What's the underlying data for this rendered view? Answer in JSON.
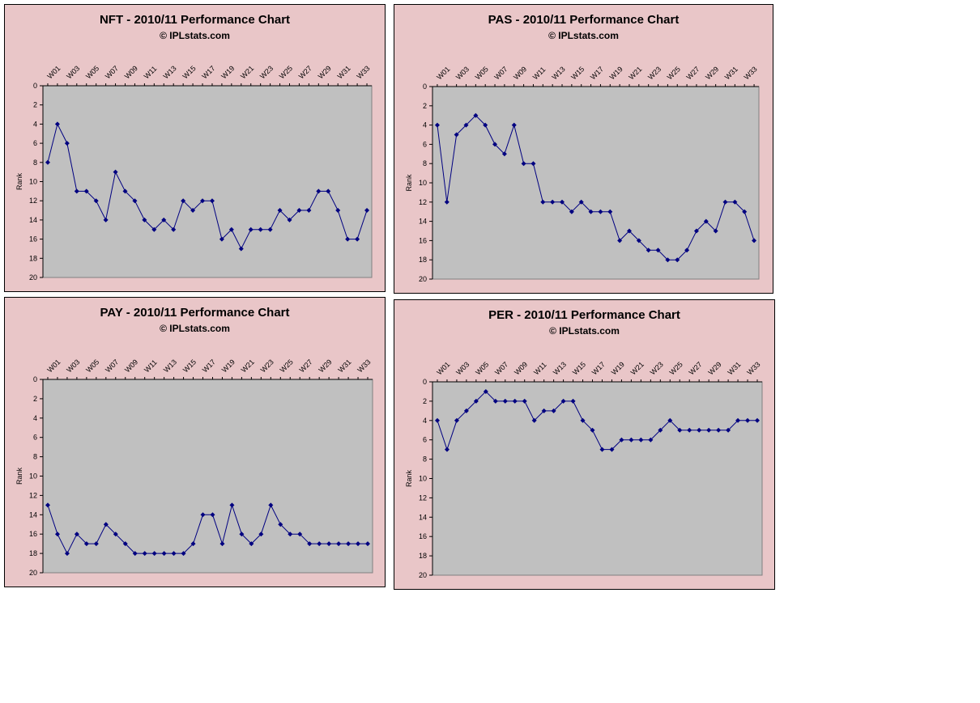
{
  "chart_data": [
    {
      "type": "line",
      "title": "NFT - 2010/11 Performance Chart",
      "subtitle": "© IPLstats.com",
      "ylabel": "Rank",
      "categories": [
        "W01",
        null,
        "W03",
        null,
        "W05",
        null,
        "W07",
        null,
        "W09",
        null,
        "W11",
        null,
        "W13",
        null,
        "W15",
        null,
        "W17",
        null,
        "W19",
        null,
        "W21",
        null,
        "W23",
        null,
        "W25",
        null,
        "W27",
        null,
        "W29",
        null,
        "W31",
        null,
        "W33",
        null
      ],
      "series": [
        {
          "color": "#000080",
          "values": [
            8,
            4,
            6,
            11,
            11,
            12,
            14,
            9,
            11,
            12,
            14,
            15,
            14,
            15,
            12,
            13,
            12,
            12,
            16,
            15,
            17,
            15,
            15,
            15,
            13,
            14,
            13,
            13,
            11,
            11,
            13,
            16,
            16,
            13
          ]
        }
      ],
      "ylim": [
        0,
        20
      ],
      "yticks": [
        0,
        2,
        4,
        6,
        8,
        10,
        12,
        14,
        16,
        18,
        20
      ],
      "y_inverted": true,
      "grid": false
    },
    {
      "type": "line",
      "title": "PAS - 2010/11 Performance Chart",
      "subtitle": "© IPLstats.com",
      "ylabel": "Rank",
      "categories": [
        "W01",
        null,
        "W03",
        null,
        "W05",
        null,
        "W07",
        null,
        "W09",
        null,
        "W11",
        null,
        "W13",
        null,
        "W15",
        null,
        "W17",
        null,
        "W19",
        null,
        "W21",
        null,
        "W23",
        null,
        "W25",
        null,
        "W27",
        null,
        "W29",
        null,
        "W31",
        null,
        "W33",
        null
      ],
      "series": [
        {
          "color": "#000080",
          "values": [
            4,
            12,
            5,
            4,
            3,
            4,
            6,
            7,
            4,
            8,
            8,
            12,
            12,
            12,
            13,
            12,
            13,
            13,
            13,
            16,
            15,
            16,
            17,
            17,
            18,
            18,
            17,
            15,
            14,
            15,
            12,
            12,
            13,
            16
          ]
        }
      ],
      "ylim": [
        0,
        20
      ],
      "yticks": [
        0,
        2,
        4,
        6,
        8,
        10,
        12,
        14,
        16,
        18,
        20
      ],
      "y_inverted": true,
      "grid": false
    },
    {
      "type": "line",
      "title": "PAY - 2010/11 Performance Chart",
      "subtitle": "© IPLstats.com",
      "ylabel": "Rank",
      "categories": [
        "W01",
        null,
        "W03",
        null,
        "W05",
        null,
        "W07",
        null,
        "W09",
        null,
        "W11",
        null,
        "W13",
        null,
        "W15",
        null,
        "W17",
        null,
        "W19",
        null,
        "W21",
        null,
        "W23",
        null,
        "W25",
        null,
        "W27",
        null,
        "W29",
        null,
        "W31",
        null,
        "W33",
        null
      ],
      "series": [
        {
          "color": "#000080",
          "values": [
            13,
            16,
            18,
            16,
            17,
            17,
            15,
            16,
            17,
            18,
            18,
            18,
            18,
            18,
            18,
            17,
            14,
            14,
            17,
            13,
            16,
            17,
            16,
            13,
            15,
            16,
            16,
            17,
            17,
            17,
            17,
            17,
            17,
            17
          ]
        }
      ],
      "ylim": [
        0,
        20
      ],
      "yticks": [
        0,
        2,
        4,
        6,
        8,
        10,
        12,
        14,
        16,
        18,
        20
      ],
      "y_inverted": true,
      "grid": false
    },
    {
      "type": "line",
      "title": "PER - 2010/11 Performance Chart",
      "subtitle": "© IPLstats.com",
      "ylabel": "Rank",
      "categories": [
        "W01",
        null,
        "W03",
        null,
        "W05",
        null,
        "W07",
        null,
        "W09",
        null,
        "W11",
        null,
        "W13",
        null,
        "W15",
        null,
        "W17",
        null,
        "W19",
        null,
        "W21",
        null,
        "W23",
        null,
        "W25",
        null,
        "W27",
        null,
        "W29",
        null,
        "W31",
        null,
        "W33",
        null
      ],
      "series": [
        {
          "color": "#000080",
          "values": [
            4,
            7,
            4,
            3,
            2,
            1,
            2,
            2,
            2,
            2,
            4,
            3,
            3,
            2,
            2,
            4,
            5,
            7,
            7,
            6,
            6,
            6,
            6,
            5,
            4,
            5,
            5,
            5,
            5,
            5,
            5,
            4,
            4,
            4
          ]
        }
      ],
      "ylim": [
        0,
        20
      ],
      "yticks": [
        0,
        2,
        4,
        6,
        8,
        10,
        12,
        14,
        16,
        18,
        20
      ],
      "y_inverted": true,
      "grid": false
    }
  ]
}
